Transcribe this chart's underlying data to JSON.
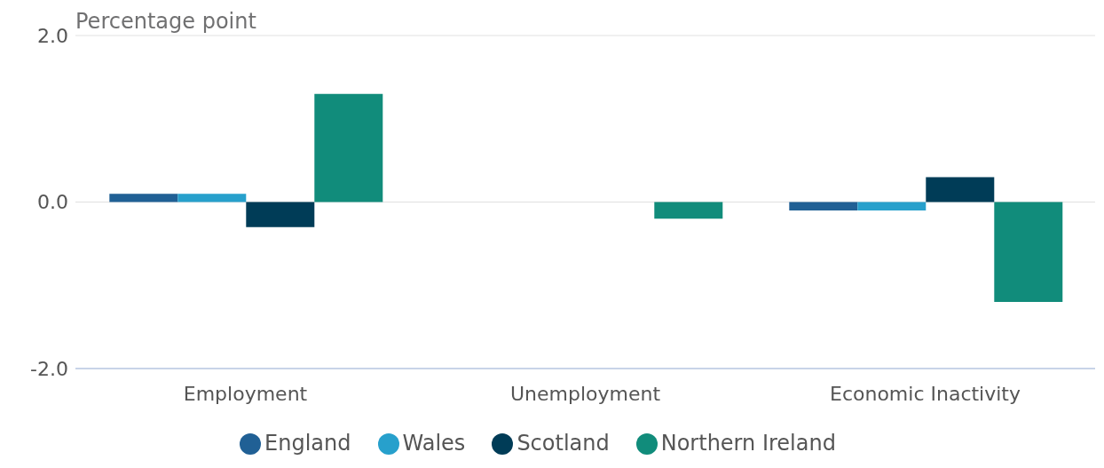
{
  "chart_data": {
    "type": "bar",
    "ylabel": "Percentage point",
    "categories": [
      "Employment",
      "Unemployment",
      "Economic Inactivity"
    ],
    "series": [
      {
        "name": "England",
        "color": "#206095",
        "values": [
          0.1,
          0,
          -0.1
        ]
      },
      {
        "name": "Wales",
        "color": "#27a0cc",
        "values": [
          0.1,
          0,
          -0.1
        ]
      },
      {
        "name": "Scotland",
        "color": "#003c57",
        "values": [
          -0.3,
          0,
          0.3
        ]
      },
      {
        "name": "Northern Ireland",
        "color": "#118c7b",
        "values": [
          1.3,
          -0.2,
          -1.2
        ]
      }
    ],
    "ylim": [
      -2,
      2
    ],
    "yticks": [
      {
        "value": -2,
        "label": "-2.0"
      },
      {
        "value": 0,
        "label": "0.0"
      },
      {
        "value": 2,
        "label": "2.0"
      }
    ],
    "grid": "y",
    "legend": "bottom"
  }
}
